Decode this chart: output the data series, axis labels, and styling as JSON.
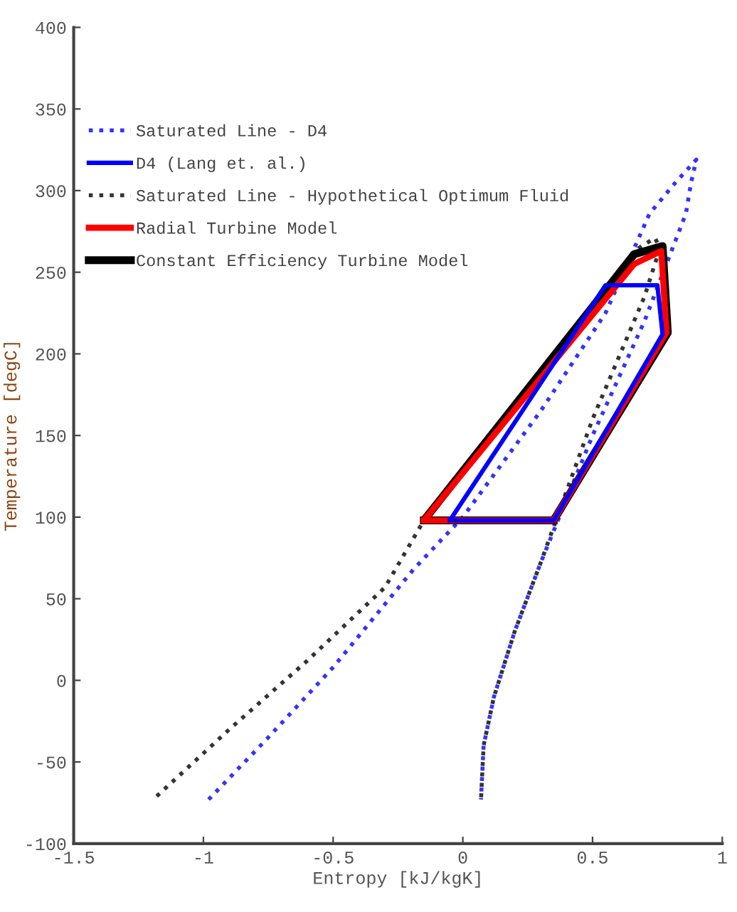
{
  "chart_data": {
    "type": "line",
    "xlabel": "Entropy [kJ/kgK]",
    "ylabel": "Temperature [degC]",
    "xlim": [
      -1.5,
      1
    ],
    "ylim": [
      -100,
      400
    ],
    "xticks": [
      {
        "value": -1.5,
        "label": "-1.5"
      },
      {
        "value": -1,
        "label": "-1"
      },
      {
        "value": -0.5,
        "label": "-0.5"
      },
      0,
      0.5,
      1
    ],
    "yticks": [
      {
        "value": -100,
        "label": "-100"
      },
      {
        "value": -50,
        "label": "-50"
      },
      0,
      50,
      100,
      150,
      200,
      250,
      300,
      350,
      400
    ],
    "grid": false,
    "legend": "top left",
    "marker": "none",
    "series": [
      {
        "name": "Saturated Line - D4",
        "color": "#3333ff",
        "line_style": "dotted",
        "x": [
          -0.98,
          -0.75,
          -0.5,
          -0.19,
          0,
          0.3,
          0.55,
          0.72,
          0.82,
          0.9,
          0.88,
          0.86,
          0.7,
          0.5,
          0.3,
          0.2,
          0.12,
          0.08,
          0.07
        ],
        "values": [
          -73,
          -35,
          8,
          68,
          100,
          165,
          225,
          286,
          305,
          319,
          305,
          286,
          220,
          150,
          72,
          30,
          -10,
          -40,
          -73
        ]
      },
      {
        "name": "D4 (Lang et. al.)",
        "color": "#0000ff",
        "line_style": "solid",
        "x": [
          -0.05,
          0.35,
          0.77,
          0.75,
          0.55,
          -0.05
        ],
        "values": [
          98,
          98,
          212,
          242,
          242,
          98
        ]
      },
      {
        "name": "Saturated Line - Hypothetical Optimum Fluid",
        "color": "#333333",
        "line_style": "dotted",
        "x": [
          -1.18,
          -0.9,
          -0.6,
          -0.3,
          -0.15,
          0.2,
          0.5,
          0.68,
          0.74,
          0.76,
          0.7,
          0.5,
          0.3,
          0.2,
          0.12,
          0.08,
          0.07
        ],
        "values": [
          -71,
          -30,
          12,
          57,
          98,
          170,
          230,
          265,
          271,
          265,
          235,
          160,
          72,
          30,
          -10,
          -40,
          -73
        ]
      },
      {
        "name": "Radial Turbine Model",
        "color": "#ff0000",
        "line_style": "solid",
        "x": [
          -0.15,
          0.35,
          0.785,
          0.765,
          0.66,
          -0.15
        ],
        "values": [
          98,
          98,
          213,
          263,
          255,
          98
        ]
      },
      {
        "name": "Constant Efficiency Turbine Model",
        "color": "#000000",
        "line_style": "solid",
        "x": [
          -0.15,
          0.35,
          0.79,
          0.77,
          0.66,
          -0.15
        ],
        "values": [
          98,
          98,
          213,
          266,
          261,
          98
        ]
      }
    ]
  }
}
